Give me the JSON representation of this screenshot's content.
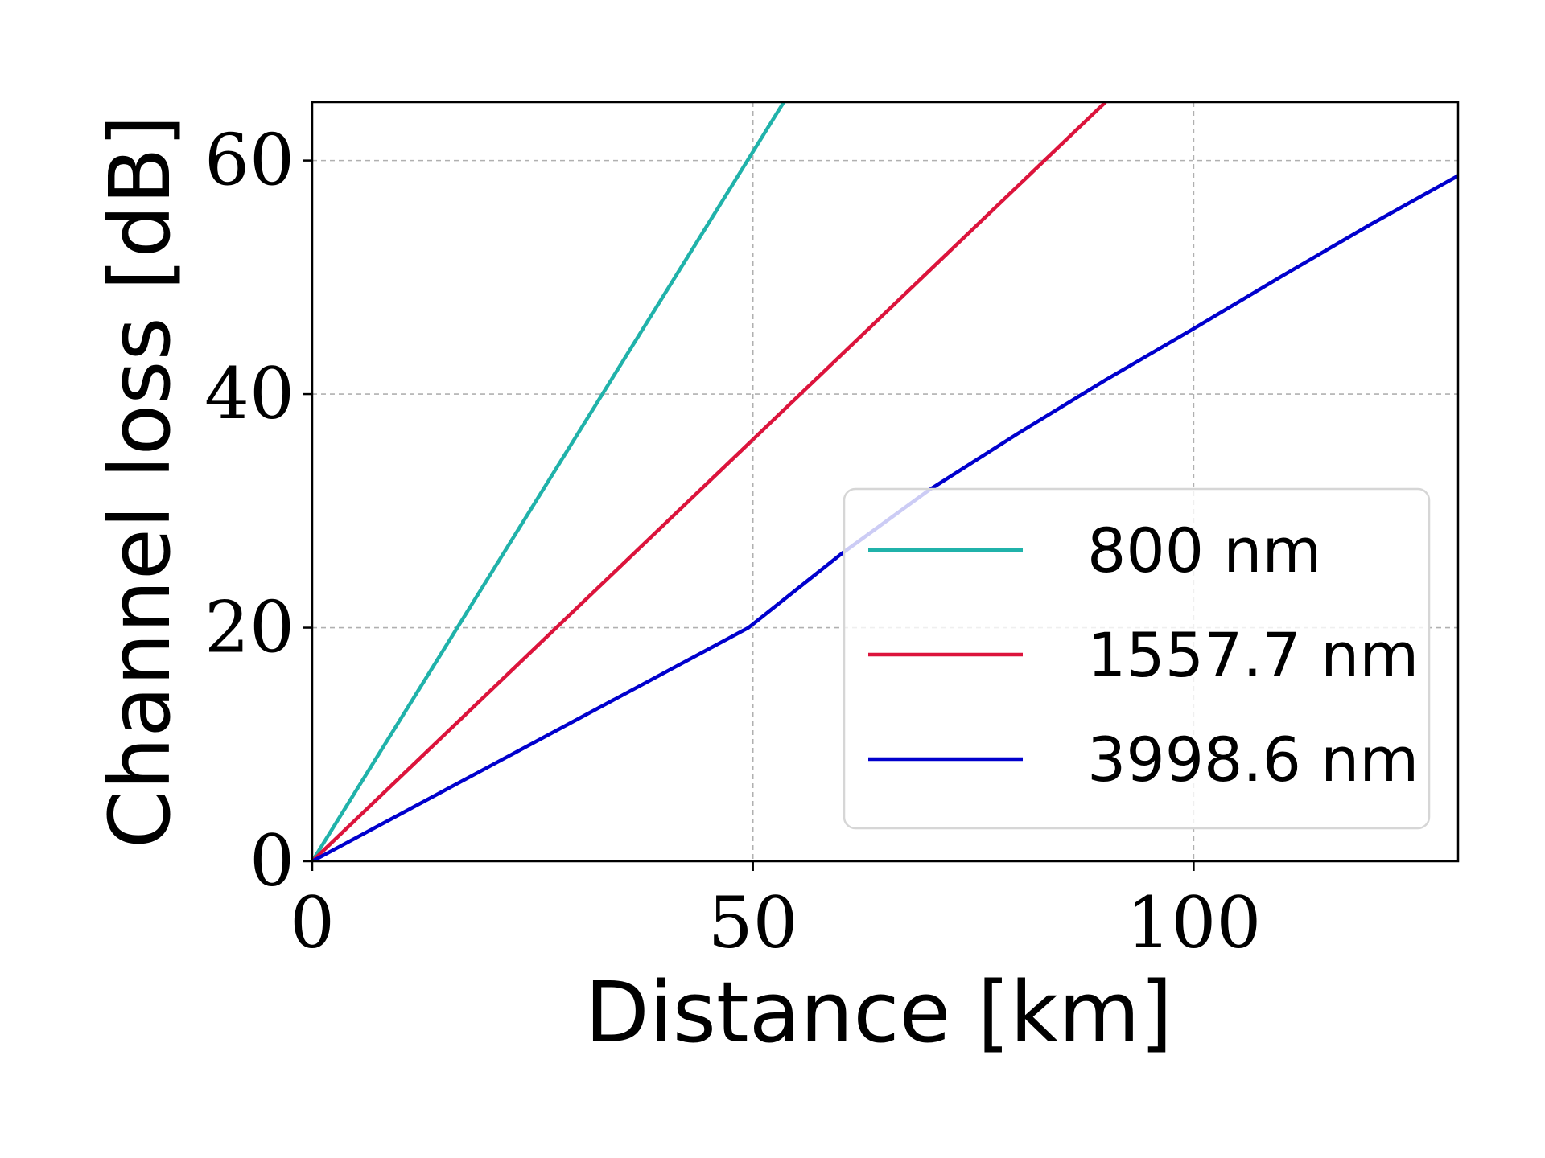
{
  "chart_data": {
    "type": "line",
    "xlabel": "Distance [km]",
    "ylabel": "Channel loss [dB]",
    "xlim": [
      0,
      130
    ],
    "ylim": [
      0,
      65
    ],
    "xticks": [
      0,
      50,
      100
    ],
    "yticks": [
      0,
      20,
      40,
      60
    ],
    "grid": true,
    "legend_position": "lower right",
    "series": [
      {
        "name": "800 nm",
        "color": "#20b2aa",
        "x": [
          0,
          53.5
        ],
        "y": [
          0,
          65
        ]
      },
      {
        "name": "1557.7 nm",
        "color": "#dc143c",
        "x": [
          0,
          90
        ],
        "y": [
          0,
          65
        ]
      },
      {
        "name": "3998.6 nm",
        "color": "#0000cd",
        "x": [
          0,
          49.5,
          60,
          70,
          80,
          90,
          100,
          110,
          120,
          130
        ],
        "y": [
          0,
          20,
          26.3,
          31.8,
          36.6,
          41.2,
          45.6,
          50.1,
          54.5,
          58.7
        ]
      }
    ]
  }
}
